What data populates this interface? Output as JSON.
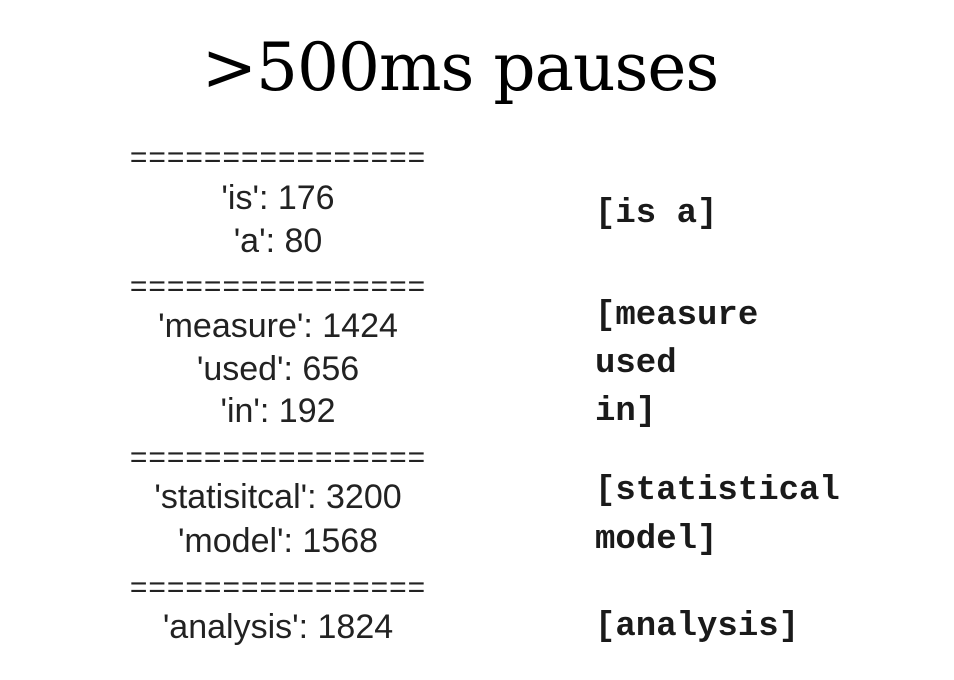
{
  "title": ">500ms pauses",
  "separator": "================",
  "groups": [
    {
      "words": [
        "'is': 176",
        "'a': 80"
      ],
      "phrase_lines": [
        "[is a]"
      ]
    },
    {
      "words": [
        "'measure': 1424",
        "'used': 656",
        "'in': 192"
      ],
      "phrase_lines": [
        "[measure",
        "used",
        "in]"
      ]
    },
    {
      "words": [
        "'statisitcal': 3200",
        "'model': 1568"
      ],
      "phrase_lines": [
        "[statistical",
        "model]"
      ]
    },
    {
      "words": [
        "'analysis': 1824"
      ],
      "phrase_lines": [
        "[analysis]"
      ]
    }
  ]
}
